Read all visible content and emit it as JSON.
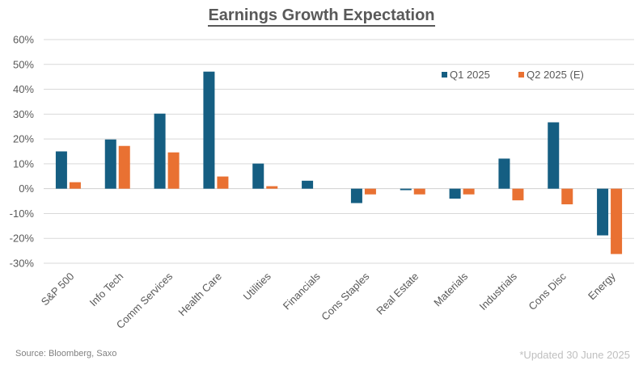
{
  "chart_data": {
    "type": "bar",
    "title": "Earnings Growth Expectation",
    "xlabel": "",
    "ylabel": "",
    "ylim": [
      -30,
      60
    ],
    "yticks": [
      60,
      50,
      40,
      30,
      20,
      10,
      0,
      -10,
      -20,
      -30
    ],
    "ytick_labels": [
      "60%",
      "50%",
      "40%",
      "30%",
      "20%",
      "10%",
      "0%",
      "-10%",
      "-20%",
      "-30%"
    ],
    "grid": true,
    "legend_position": "top-right",
    "categories": [
      "S&P 500",
      "Info Tech",
      "Comm Services",
      "Health Care",
      "Utilities",
      "Financials",
      "Cons Staples",
      "Real Estate",
      "Materials",
      "Industrials",
      "Cons Disc",
      "Energy"
    ],
    "series": [
      {
        "name": "Q1 2025",
        "color": "#155E82",
        "values": [
          15.0,
          19.8,
          30.2,
          47.1,
          10.1,
          3.2,
          -5.8,
          -0.6,
          -4.0,
          12.1,
          26.7,
          -18.8
        ]
      },
      {
        "name": "Q2 2025 (E)",
        "color": "#E97132",
        "values": [
          2.6,
          17.2,
          14.6,
          4.9,
          1.0,
          0.0,
          -2.3,
          -2.3,
          -2.3,
          -4.7,
          -6.3,
          -26.3
        ]
      }
    ]
  },
  "footer": {
    "source": "Source: Bloomberg, Saxo",
    "updated": "*Updated 30 June 2025"
  }
}
